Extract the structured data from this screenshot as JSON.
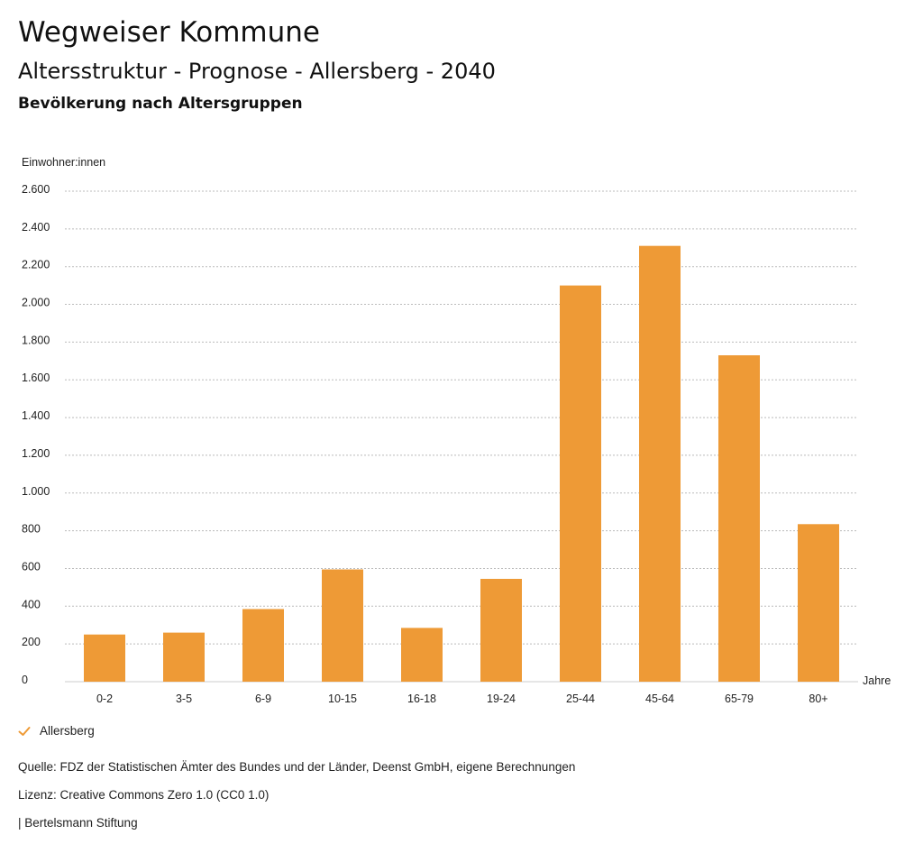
{
  "header": {
    "title": "Wegweiser Kommune",
    "subtitle": "Altersstruktur - Prognose - Allersberg - 2040"
  },
  "chart_data": {
    "type": "bar",
    "title": "Bevölkerung nach Altersgruppen",
    "ylabel": "Einwohner:innen",
    "xlabel": "Jahre",
    "categories": [
      "0-2",
      "3-5",
      "6-9",
      "10-15",
      "16-18",
      "19-24",
      "25-44",
      "45-64",
      "65-79",
      "80+"
    ],
    "series": [
      {
        "name": "Allersberg",
        "values": [
          250,
          260,
          385,
          595,
          285,
          545,
          2100,
          2310,
          1730,
          835
        ],
        "color": "#ee9a36"
      }
    ],
    "ylim": [
      0,
      2600
    ],
    "yticks": [
      0,
      200,
      400,
      600,
      800,
      1000,
      1200,
      1400,
      1600,
      1800,
      2000,
      2200,
      2400,
      2600
    ],
    "ytick_labels": [
      "0",
      "200",
      "400",
      "600",
      "800",
      "1.000",
      "1.200",
      "1.400",
      "1.600",
      "1.800",
      "2.000",
      "2.200",
      "2.400",
      "2.600"
    ],
    "grid": true,
    "legend_position": "bottom-left"
  },
  "legend": {
    "label": "Allersberg",
    "icon": "check-icon",
    "color": "#ee9a36"
  },
  "footer": {
    "source": "Quelle: FDZ der Statistischen Ämter des Bundes und der Länder, Deenst GmbH, eigene Berechnungen",
    "license": "Lizenz: Creative Commons Zero 1.0 (CC0 1.0)",
    "publisher": "| Bertelsmann Stiftung"
  }
}
